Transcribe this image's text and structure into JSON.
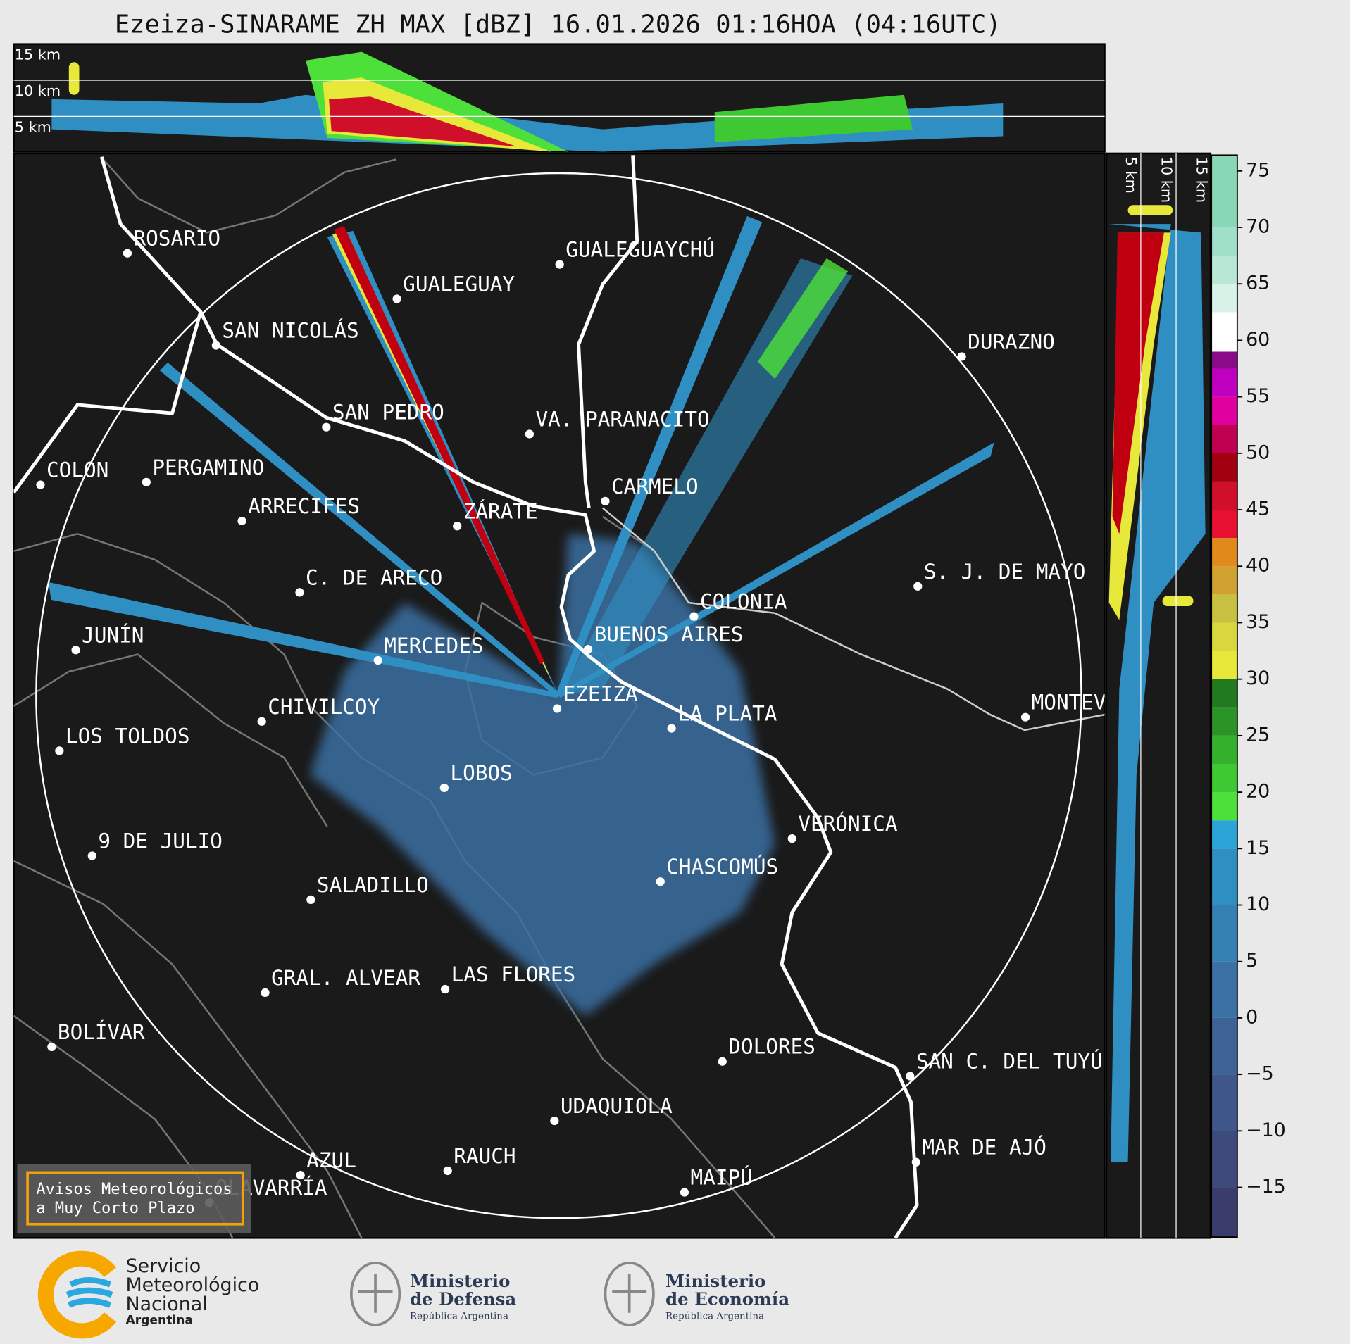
{
  "header": {
    "title": "Ezeiza-SINARAME ZH MAX [dBZ] 16.01.2026 01:16HOA (04:16UTC)"
  },
  "top_section": {
    "labels": [
      "15 km",
      "10 km",
      "5 km"
    ]
  },
  "side_section": {
    "labels": [
      "5 km",
      "10 km",
      "15 km"
    ]
  },
  "map": {
    "cities": [
      "ROSARIO",
      "GUALEGUAYCHÚ",
      "GUALEGUAY",
      "SAN NICOLÁS",
      "DURAZNO",
      "SAN PEDRO",
      "VA. PARANACITO",
      "COLON",
      "PERGAMINO",
      "CARMELO",
      "ARRECIFES",
      "ZÁRATE",
      "S. J. DE MAYO",
      "C. DE ARECO",
      "COLONIA",
      "JUNÍN",
      "BUENOS AIRES",
      "MERCEDES",
      "MONTEVIDEO",
      "EZEIZA",
      "CHIVILCOY",
      "LA PLATA",
      "LOS TOLDOS",
      "LOBOS",
      "VERÓNICA",
      "9 DE JULIO",
      "CHASCOMÚS",
      "SALADILLO",
      "GRAL. ALVEAR",
      "LAS FLORES",
      "BOLÍVAR",
      "DOLORES",
      "SAN C. DEL TUYÚ",
      "UDAQUIOLA",
      "MAR DE AJÓ",
      "AZUL",
      "RAUCH",
      "MAIPÚ",
      "OLAVARRÍA"
    ]
  },
  "warning_box": {
    "lines": [
      "Avisos Meteorológicos",
      "a Muy Corto Plazo"
    ]
  },
  "colorbar": {
    "lim": [
      -19.4,
      76.4
    ],
    "ticks": [
      75,
      70,
      65,
      60,
      55,
      50,
      45,
      40,
      35,
      30,
      25,
      20,
      15,
      10,
      5,
      0,
      {
        "value": -5,
        "label": "−5"
      },
      {
        "value": -10,
        "label": "−10"
      },
      {
        "value": -15,
        "label": "−15"
      }
    ],
    "bins": [
      -19.4,
      -15,
      -10,
      -5,
      0,
      5,
      10,
      15,
      17.5,
      20,
      22.5,
      25,
      27.5,
      30,
      32.5,
      35,
      37.5,
      40,
      42.5,
      45,
      47.5,
      50,
      52.5,
      55,
      57.5,
      59,
      62.5,
      65,
      67.5,
      70,
      76.4
    ],
    "colors": [
      "#3a3d6b",
      "#3d4a7c",
      "#3e5689",
      "#3d6396",
      "#3a70a3",
      "#3580b3",
      "#2f8fc2",
      "#2ba5d8",
      "#4de03a",
      "#3ec832",
      "#35b02c",
      "#2b9426",
      "#217a20",
      "#e8e83a",
      "#d8d83e",
      "#c8c040",
      "#d0a030",
      "#e08a1c",
      "#e81030",
      "#d0102a",
      "#a00010",
      "#c00050",
      "#e000a0",
      "#c000c0",
      "#8a0a8a",
      "#ffffff",
      "#d8f2e8",
      "#b8e8d4",
      "#a0e0c8",
      "#88d8b8"
    ]
  },
  "footer": {
    "smn": [
      "Servicio",
      "Meteorológico",
      "Nacional",
      "Argentina"
    ],
    "defensa": [
      "Ministerio",
      "de Defensa",
      "República Argentina"
    ],
    "economia": [
      "Ministerio",
      "de Economía",
      "República Argentina"
    ]
  }
}
